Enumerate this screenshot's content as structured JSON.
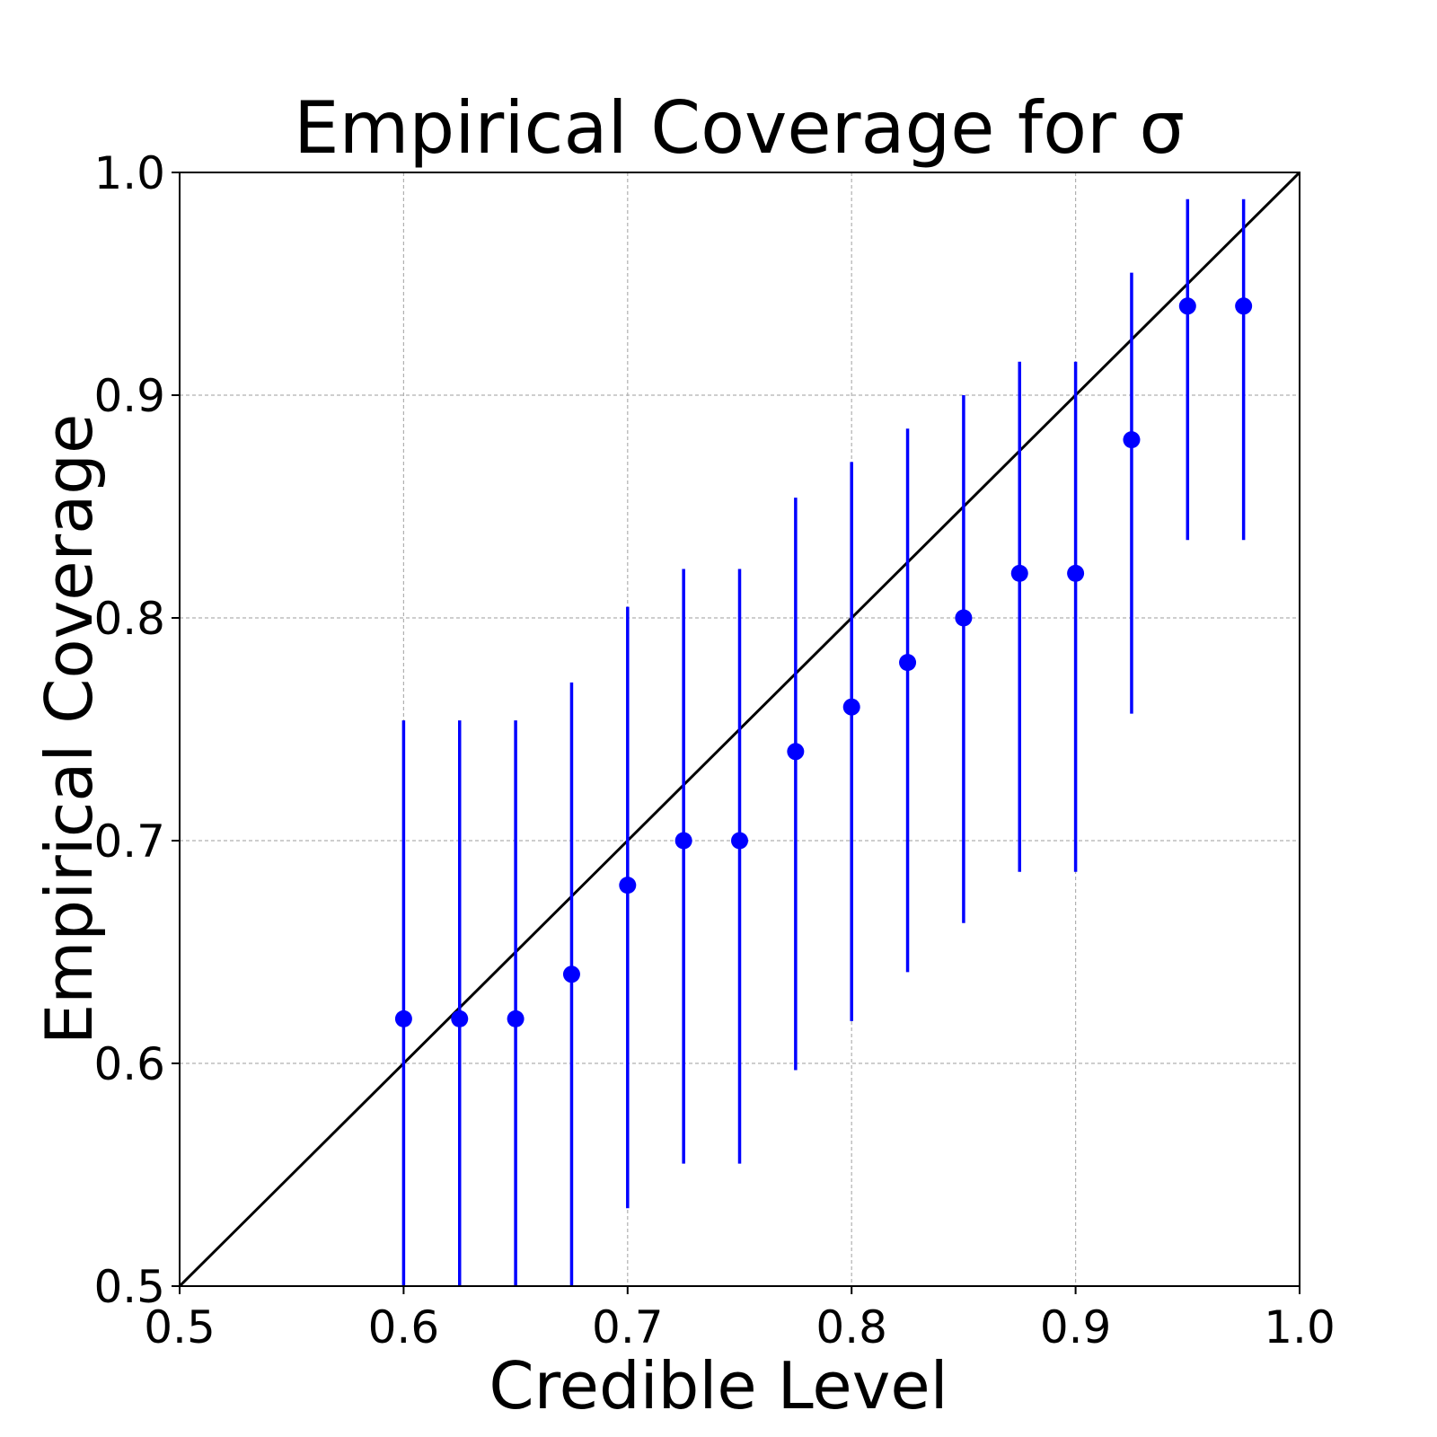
{
  "chart_data": {
    "type": "scatter",
    "title": "Empirical Coverage for σ",
    "xlabel": "Credible Level",
    "ylabel": "Empirical Coverage",
    "xlim": [
      0.5,
      1.0
    ],
    "ylim": [
      0.5,
      1.0
    ],
    "x_ticks": [
      "0.5",
      "0.6",
      "0.7",
      "0.8",
      "0.9",
      "1.0"
    ],
    "y_ticks": [
      "0.5",
      "0.6",
      "0.7",
      "0.8",
      "0.9",
      "1.0"
    ],
    "grid": true,
    "reference_line": {
      "x": [
        0.5,
        1.0
      ],
      "y": [
        0.5,
        1.0
      ],
      "color": "#000000"
    },
    "series": [
      {
        "color": "#0000ff",
        "x": [
          0.6,
          0.625,
          0.65,
          0.675,
          0.7,
          0.725,
          0.75,
          0.775,
          0.8,
          0.825,
          0.85,
          0.875,
          0.9,
          0.925,
          0.95,
          0.975
        ],
        "y": [
          0.62,
          0.62,
          0.62,
          0.64,
          0.68,
          0.7,
          0.7,
          0.74,
          0.76,
          0.78,
          0.8,
          0.82,
          0.82,
          0.88,
          0.94,
          0.94
        ],
        "y_lower": [
          0.48,
          0.48,
          0.48,
          0.5,
          0.535,
          0.555,
          0.555,
          0.597,
          0.619,
          0.641,
          0.663,
          0.686,
          0.686,
          0.757,
          0.835,
          0.835
        ],
        "y_upper": [
          0.754,
          0.754,
          0.754,
          0.771,
          0.805,
          0.822,
          0.822,
          0.854,
          0.87,
          0.885,
          0.9,
          0.915,
          0.915,
          0.955,
          0.988,
          0.988
        ]
      }
    ]
  }
}
